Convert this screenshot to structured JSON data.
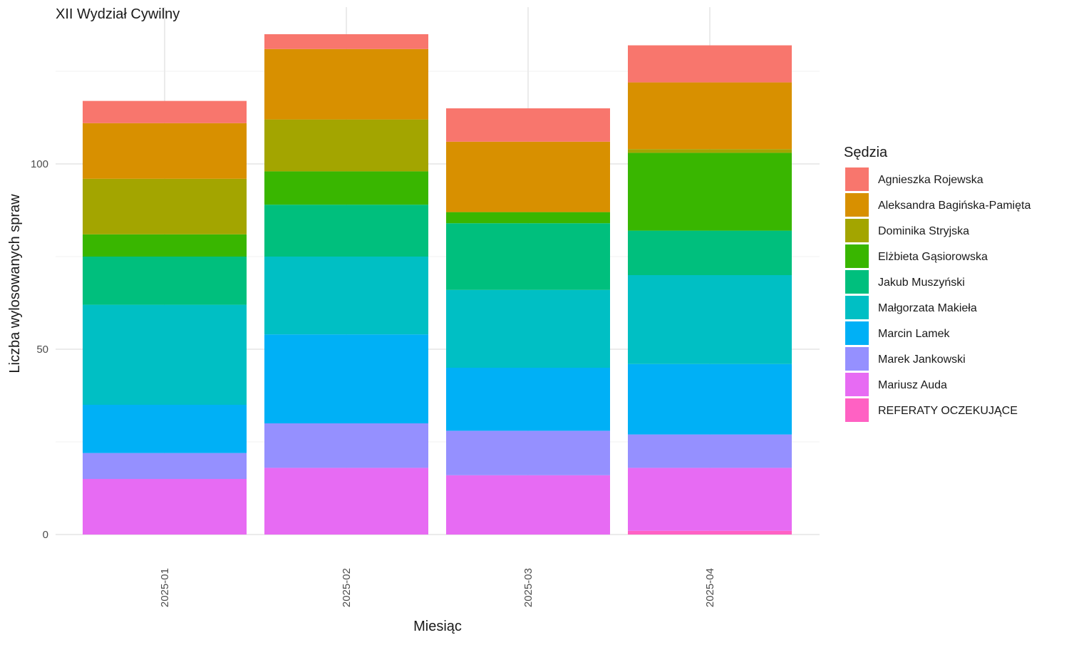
{
  "chart_data": {
    "type": "bar",
    "stacked": true,
    "title": "XII Wydział Cywilny",
    "xlabel": "Miesiąc",
    "ylabel": "Liczba wylosowanych spraw",
    "categories": [
      "2025-01",
      "2025-02",
      "2025-03",
      "2025-04"
    ],
    "ylim": [
      0,
      137
    ],
    "yticks": [
      0,
      50,
      100
    ],
    "grid": true,
    "legend_title": "Sędzia",
    "legend_position": "right",
    "series": [
      {
        "name": "REFERATY OCZEKUJĄCE",
        "color": "#FF61C3",
        "values": [
          0,
          0,
          0,
          1
        ]
      },
      {
        "name": "Mariusz Auda",
        "color": "#E76BF3",
        "values": [
          15,
          18,
          16,
          17
        ]
      },
      {
        "name": "Marek Jankowski",
        "color": "#9590FF",
        "values": [
          7,
          12,
          12,
          9
        ]
      },
      {
        "name": "Marcin Lamek",
        "color": "#00B0F6",
        "values": [
          13,
          24,
          17,
          19
        ]
      },
      {
        "name": "Małgorzata Makieła",
        "color": "#00BFC4",
        "values": [
          27,
          21,
          21,
          24
        ]
      },
      {
        "name": "Jakub Muszyński",
        "color": "#00BF7D",
        "values": [
          13,
          14,
          18,
          12
        ]
      },
      {
        "name": "Elżbieta Gąsiorowska",
        "color": "#39B600",
        "values": [
          6,
          9,
          3,
          21
        ]
      },
      {
        "name": "Dominika Stryjska",
        "color": "#A3A500",
        "values": [
          15,
          14,
          0,
          1
        ]
      },
      {
        "name": "Aleksandra Bagińska-Pamięta",
        "color": "#D89000",
        "values": [
          15,
          19,
          19,
          18
        ]
      },
      {
        "name": "Agnieszka Rojewska",
        "color": "#F8766D",
        "values": [
          6,
          4,
          9,
          10
        ]
      }
    ]
  }
}
